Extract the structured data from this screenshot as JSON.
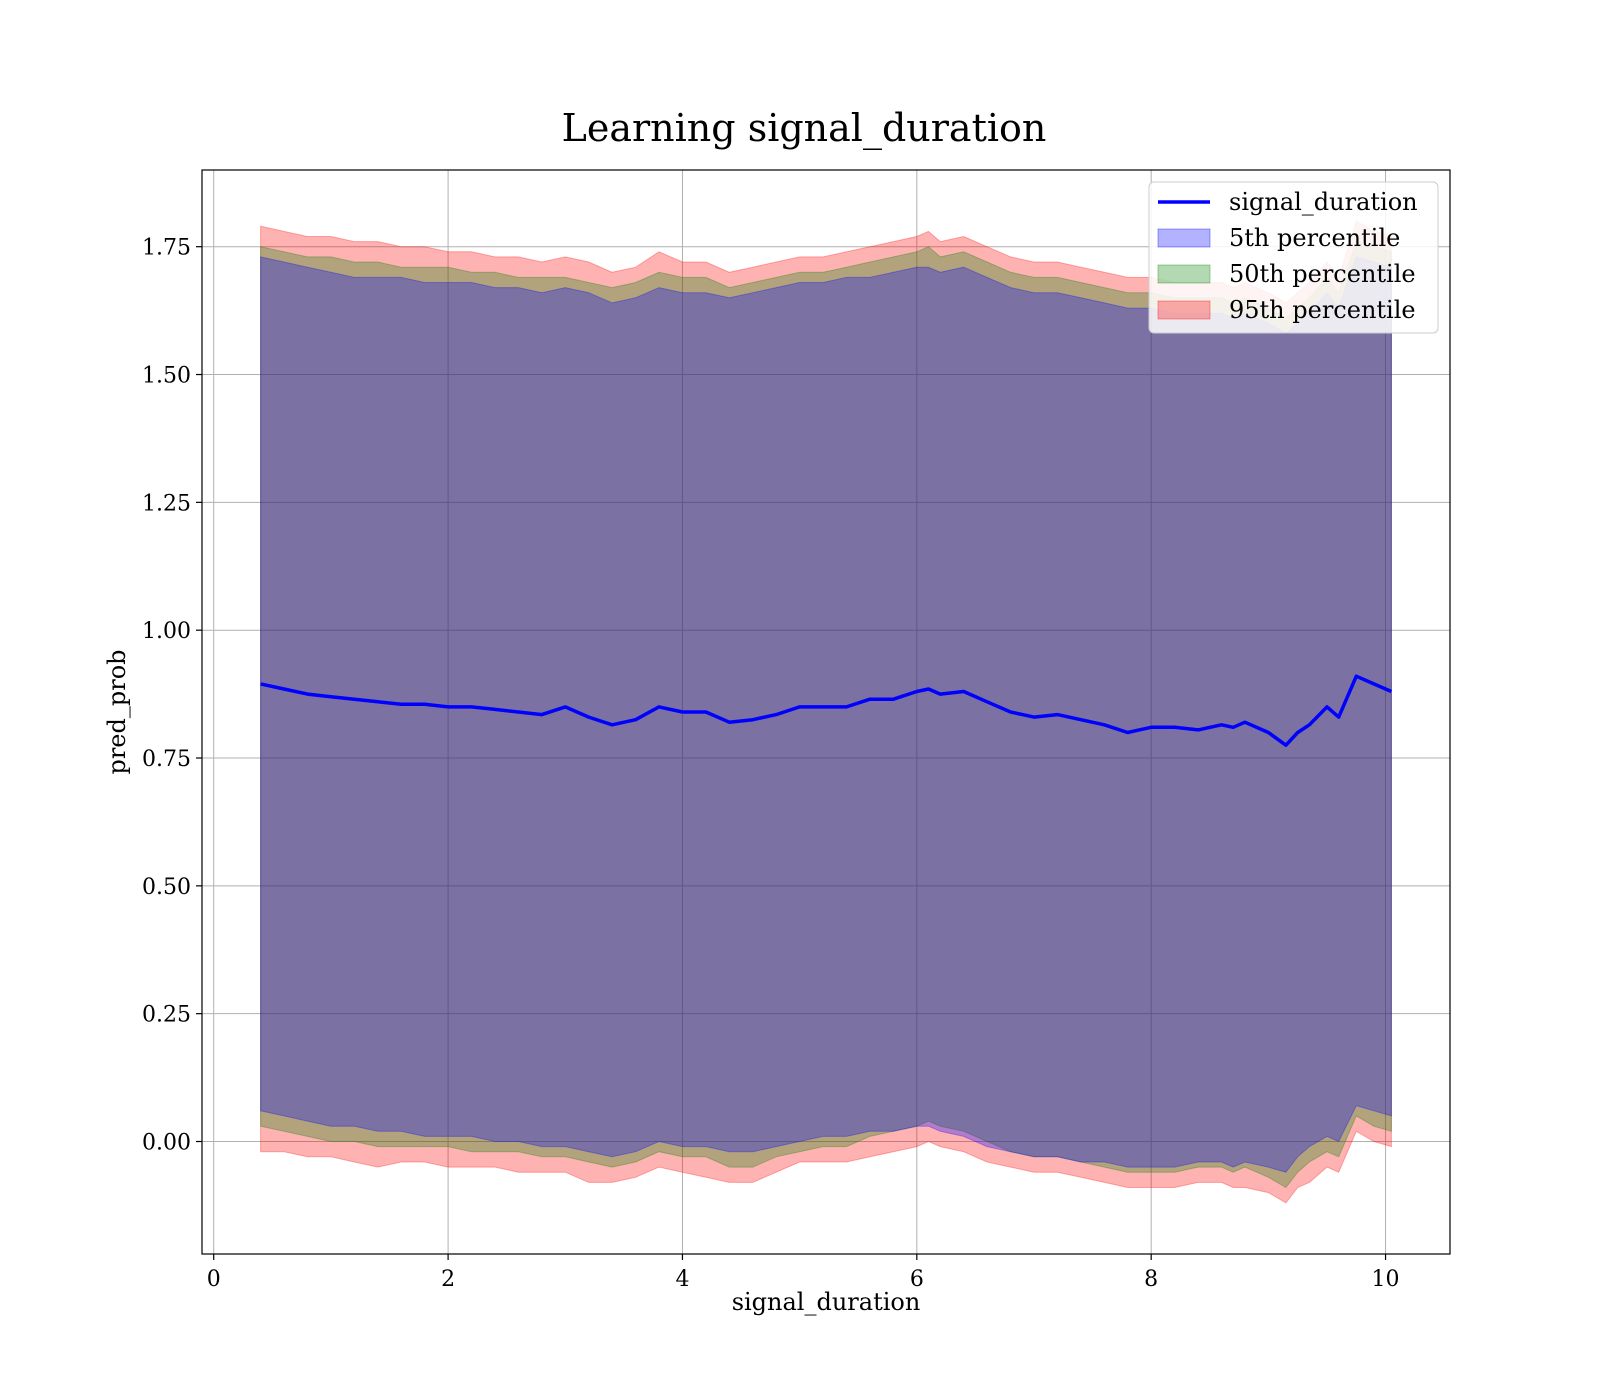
{
  "chart_data": {
    "type": "area",
    "title": "Learning signal_duration",
    "xlabel": "signal_duration",
    "ylabel": "pred_prob",
    "xlim": [
      -0.1,
      10.55
    ],
    "ylim": [
      -0.22,
      1.9
    ],
    "xticks": [
      0,
      2,
      4,
      6,
      8,
      10
    ],
    "xtick_labels": [
      "0",
      "2",
      "4",
      "6",
      "8",
      "10"
    ],
    "yticks": [
      0.0,
      0.25,
      0.5,
      0.75,
      1.0,
      1.25,
      1.5,
      1.75
    ],
    "ytick_labels": [
      "0.00",
      "0.25",
      "0.50",
      "0.75",
      "1.00",
      "1.25",
      "1.50",
      "1.75"
    ],
    "grid": true,
    "legend_position": "top-right",
    "legend": [
      {
        "label": "signal_duration",
        "kind": "line",
        "color": "#0000ff"
      },
      {
        "label": "5th percentile",
        "kind": "patch",
        "color": "#0000ff"
      },
      {
        "label": "50th percentile",
        "kind": "patch",
        "color": "#008000"
      },
      {
        "label": "95th percentile",
        "kind": "patch",
        "color": "#ff0000"
      }
    ],
    "x": [
      0.4,
      0.6,
      0.8,
      1.0,
      1.2,
      1.4,
      1.6,
      1.8,
      2.0,
      2.2,
      2.4,
      2.6,
      2.8,
      3.0,
      3.2,
      3.4,
      3.6,
      3.8,
      4.0,
      4.2,
      4.4,
      4.6,
      4.8,
      5.0,
      5.2,
      5.4,
      5.6,
      5.8,
      6.0,
      6.1,
      6.2,
      6.4,
      6.6,
      6.8,
      7.0,
      7.2,
      7.4,
      7.6,
      7.8,
      8.0,
      8.2,
      8.4,
      8.6,
      8.7,
      8.8,
      9.0,
      9.15,
      9.25,
      9.35,
      9.5,
      9.6,
      9.75,
      9.9,
      10.05
    ],
    "series": [
      {
        "name": "signal_duration",
        "color": "#0000ff",
        "values": [
          0.895,
          0.885,
          0.875,
          0.87,
          0.865,
          0.86,
          0.855,
          0.855,
          0.85,
          0.85,
          0.845,
          0.84,
          0.835,
          0.85,
          0.83,
          0.815,
          0.825,
          0.85,
          0.84,
          0.84,
          0.82,
          0.825,
          0.835,
          0.85,
          0.85,
          0.85,
          0.865,
          0.865,
          0.88,
          0.885,
          0.875,
          0.88,
          0.86,
          0.84,
          0.83,
          0.835,
          0.825,
          0.815,
          0.8,
          0.81,
          0.81,
          0.805,
          0.815,
          0.81,
          0.82,
          0.8,
          0.775,
          0.8,
          0.815,
          0.85,
          0.83,
          0.91,
          0.895,
          0.88
        ]
      }
    ],
    "bands": [
      {
        "name": "95th percentile",
        "color": "#ff0000",
        "lower": [
          -0.02,
          -0.02,
          -0.03,
          -0.03,
          -0.04,
          -0.05,
          -0.04,
          -0.04,
          -0.05,
          -0.05,
          -0.05,
          -0.06,
          -0.06,
          -0.06,
          -0.08,
          -0.08,
          -0.07,
          -0.05,
          -0.06,
          -0.07,
          -0.08,
          -0.08,
          -0.06,
          -0.04,
          -0.04,
          -0.04,
          -0.03,
          -0.02,
          -0.01,
          0.0,
          -0.01,
          -0.02,
          -0.04,
          -0.05,
          -0.06,
          -0.06,
          -0.07,
          -0.08,
          -0.09,
          -0.09,
          -0.09,
          -0.08,
          -0.08,
          -0.09,
          -0.09,
          -0.1,
          -0.12,
          -0.09,
          -0.08,
          -0.05,
          -0.06,
          0.02,
          0.0,
          -0.01
        ],
        "upper": [
          1.79,
          1.78,
          1.77,
          1.77,
          1.76,
          1.76,
          1.75,
          1.75,
          1.74,
          1.74,
          1.73,
          1.73,
          1.72,
          1.73,
          1.72,
          1.7,
          1.71,
          1.74,
          1.72,
          1.72,
          1.7,
          1.71,
          1.72,
          1.73,
          1.73,
          1.74,
          1.75,
          1.76,
          1.77,
          1.78,
          1.76,
          1.77,
          1.75,
          1.73,
          1.72,
          1.72,
          1.71,
          1.7,
          1.69,
          1.69,
          1.68,
          1.68,
          1.68,
          1.67,
          1.68,
          1.66,
          1.64,
          1.66,
          1.68,
          1.72,
          1.69,
          1.8,
          1.78,
          1.77
        ]
      },
      {
        "name": "50th percentile",
        "color": "#008000",
        "lower": [
          0.03,
          0.02,
          0.01,
          0.0,
          0.0,
          -0.01,
          -0.01,
          -0.01,
          -0.01,
          -0.02,
          -0.02,
          -0.02,
          -0.03,
          -0.03,
          -0.04,
          -0.05,
          -0.04,
          -0.02,
          -0.03,
          -0.03,
          -0.05,
          -0.05,
          -0.03,
          -0.02,
          -0.01,
          -0.01,
          0.01,
          0.02,
          0.03,
          0.04,
          0.03,
          0.02,
          0.0,
          -0.02,
          -0.03,
          -0.03,
          -0.04,
          -0.05,
          -0.06,
          -0.06,
          -0.06,
          -0.05,
          -0.05,
          -0.06,
          -0.05,
          -0.07,
          -0.09,
          -0.06,
          -0.04,
          -0.02,
          -0.03,
          0.05,
          0.03,
          0.02
        ],
        "upper": [
          1.75,
          1.74,
          1.73,
          1.73,
          1.72,
          1.72,
          1.71,
          1.71,
          1.71,
          1.7,
          1.7,
          1.69,
          1.69,
          1.69,
          1.68,
          1.67,
          1.68,
          1.7,
          1.69,
          1.69,
          1.67,
          1.68,
          1.69,
          1.7,
          1.7,
          1.71,
          1.72,
          1.73,
          1.74,
          1.75,
          1.73,
          1.74,
          1.72,
          1.7,
          1.69,
          1.69,
          1.68,
          1.67,
          1.66,
          1.66,
          1.65,
          1.65,
          1.65,
          1.64,
          1.65,
          1.63,
          1.61,
          1.63,
          1.65,
          1.69,
          1.66,
          1.76,
          1.75,
          1.74
        ]
      },
      {
        "name": "5th percentile",
        "color": "#0000ff",
        "lower": [
          0.06,
          0.05,
          0.04,
          0.03,
          0.03,
          0.02,
          0.02,
          0.01,
          0.01,
          0.01,
          0.0,
          0.0,
          -0.01,
          -0.01,
          -0.02,
          -0.03,
          -0.02,
          0.0,
          -0.01,
          -0.01,
          -0.02,
          -0.02,
          -0.01,
          0.0,
          0.01,
          0.01,
          0.02,
          0.02,
          0.03,
          0.03,
          0.02,
          0.01,
          -0.01,
          -0.02,
          -0.03,
          -0.03,
          -0.04,
          -0.04,
          -0.05,
          -0.05,
          -0.05,
          -0.04,
          -0.04,
          -0.05,
          -0.04,
          -0.05,
          -0.06,
          -0.03,
          -0.01,
          0.01,
          0.0,
          0.07,
          0.06,
          0.05
        ],
        "upper": [
          1.73,
          1.72,
          1.71,
          1.7,
          1.69,
          1.69,
          1.69,
          1.68,
          1.68,
          1.68,
          1.67,
          1.67,
          1.66,
          1.67,
          1.66,
          1.64,
          1.65,
          1.67,
          1.66,
          1.66,
          1.65,
          1.66,
          1.67,
          1.68,
          1.68,
          1.69,
          1.69,
          1.7,
          1.71,
          1.71,
          1.7,
          1.71,
          1.69,
          1.67,
          1.66,
          1.66,
          1.65,
          1.64,
          1.63,
          1.63,
          1.62,
          1.62,
          1.62,
          1.61,
          1.62,
          1.6,
          1.58,
          1.6,
          1.62,
          1.66,
          1.63,
          1.73,
          1.72,
          1.71
        ]
      }
    ]
  }
}
